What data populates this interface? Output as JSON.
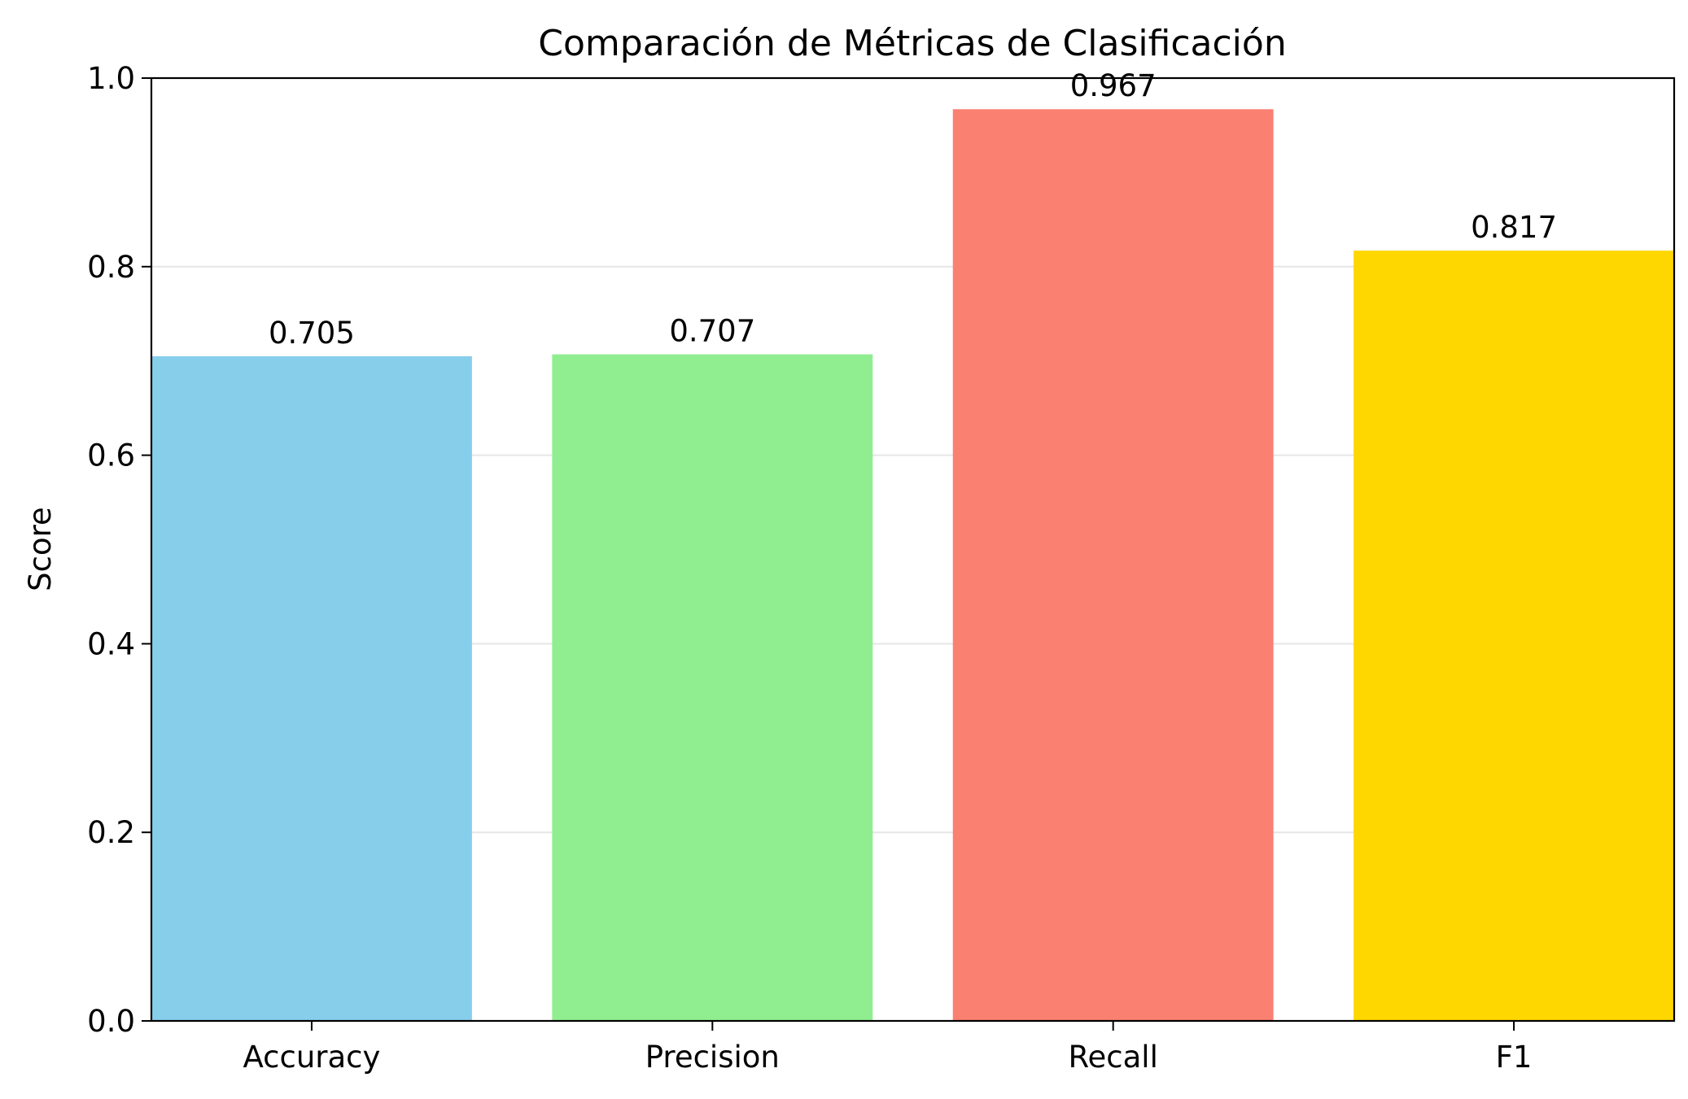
{
  "chart_data": {
    "type": "bar",
    "title": "Comparación de Métricas de Clasificación",
    "xlabel": "",
    "ylabel": "Score",
    "categories": [
      "Accuracy",
      "Precision",
      "Recall",
      "F1"
    ],
    "values": [
      0.705,
      0.707,
      0.967,
      0.817
    ],
    "data_labels": [
      "0.705",
      "0.707",
      "0.967",
      "0.817"
    ],
    "colors": [
      "#87CEEB",
      "#90EE90",
      "#FA8072",
      "#FFD700"
    ],
    "ylim": [
      0,
      1.0
    ],
    "yticks": [
      0.0,
      0.2,
      0.4,
      0.6,
      0.8,
      1.0
    ],
    "ytick_labels": [
      "0.0",
      "0.2",
      "0.4",
      "0.6",
      "0.8",
      "1.0"
    ],
    "grid": "y-axis, light gray",
    "legend": "none"
  }
}
